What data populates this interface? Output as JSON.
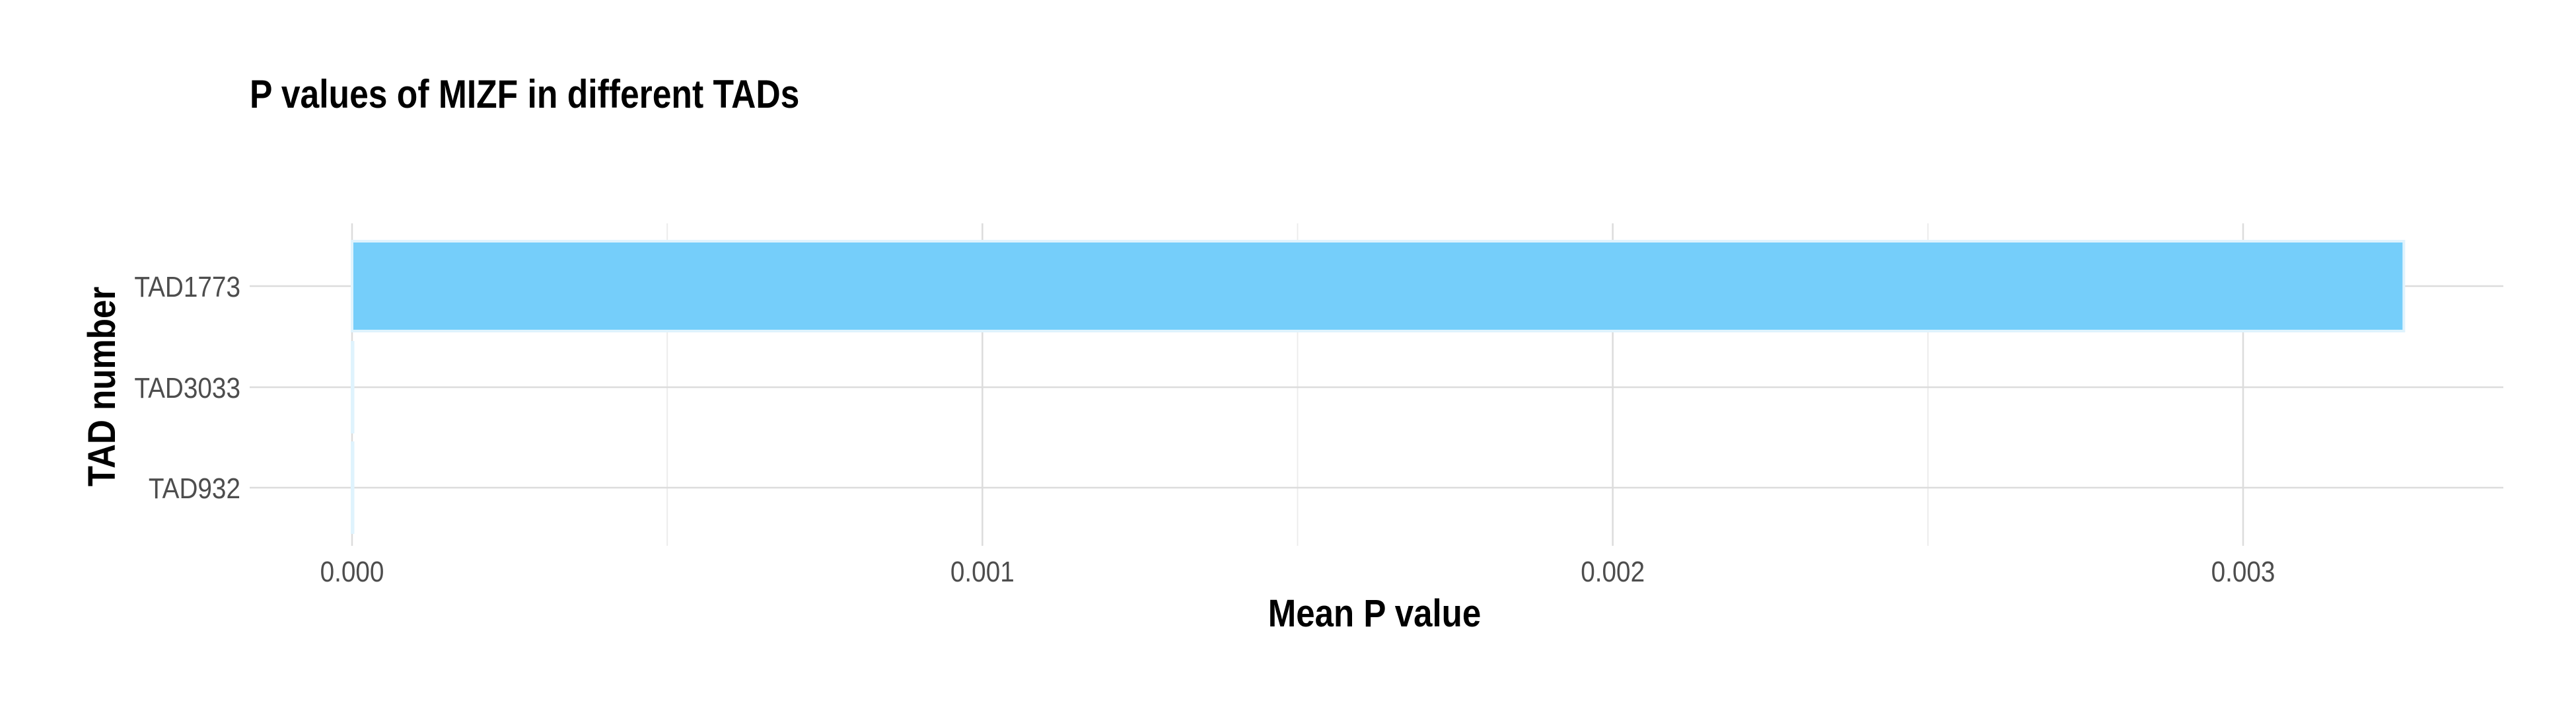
{
  "chart_data": {
    "type": "bar",
    "orientation": "horizontal",
    "title": "P values of MIZF in different TADs",
    "xlabel": "Mean P value",
    "ylabel": "TAD number",
    "categories": [
      "TAD1773",
      "TAD3033",
      "TAD932"
    ],
    "values": [
      0.003255,
      3e-07,
      1e-07
    ],
    "xlim": [
      -0.00015,
      0.00343
    ],
    "xticks": [
      "0.000",
      "0.001",
      "0.002",
      "0.003"
    ],
    "xtick_values": [
      0,
      0.001,
      0.002,
      0.003
    ],
    "grid": true,
    "bar_color": "#75cefa",
    "bar_outline": "#dff3fd"
  }
}
